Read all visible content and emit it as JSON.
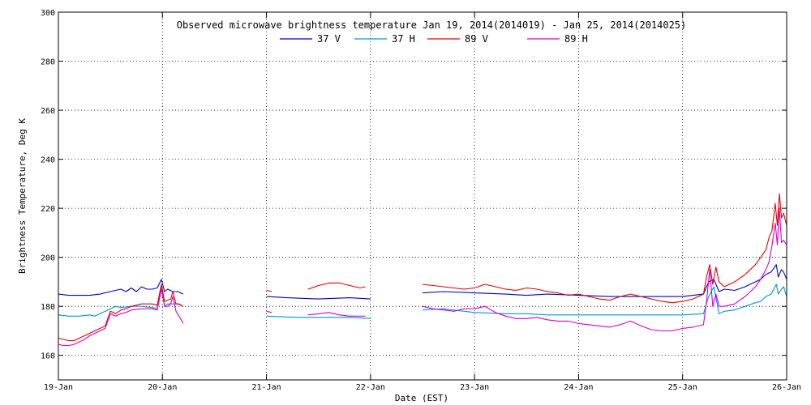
{
  "chart_data": {
    "type": "line",
    "title": "Observed microwave brightness temperature Jan 19, 2014(2014019) - Jan 25, 2014(2014025)",
    "xlabel": "Date (EST)",
    "ylabel": "Brightness Temperature, Deg K",
    "x_tick_labels": [
      "19-Jan",
      "20-Jan",
      "21-Jan",
      "22-Jan",
      "23-Jan",
      "24-Jan",
      "25-Jan",
      "26-Jan"
    ],
    "xlim": [
      0,
      7
    ],
    "ylim": [
      150,
      300
    ],
    "y_ticks": [
      160,
      180,
      200,
      220,
      240,
      260,
      280,
      300
    ],
    "grid": true,
    "legend_position": "top-center",
    "series": [
      {
        "name": "37 V",
        "color": "#0000c8",
        "segments": [
          [
            [
              0.0,
              185
            ],
            [
              0.1,
              184.5
            ],
            [
              0.2,
              184.5
            ],
            [
              0.3,
              184.5
            ],
            [
              0.4,
              185
            ],
            [
              0.5,
              186
            ],
            [
              0.6,
              187
            ],
            [
              0.65,
              186
            ],
            [
              0.7,
              187.5
            ],
            [
              0.75,
              186
            ],
            [
              0.8,
              188
            ],
            [
              0.85,
              187
            ],
            [
              0.9,
              187
            ],
            [
              0.95,
              187.5
            ],
            [
              0.99,
              191
            ],
            [
              1.02,
              186
            ],
            [
              1.05,
              187
            ],
            [
              1.1,
              186
            ],
            [
              1.15,
              186
            ],
            [
              1.2,
              185
            ]
          ],
          [
            [
              2.0,
              184
            ],
            [
              2.2,
              183.5
            ],
            [
              2.5,
              183
            ],
            [
              2.8,
              183.5
            ],
            [
              3.0,
              183
            ]
          ],
          [
            [
              3.5,
              185.5
            ],
            [
              3.7,
              186
            ],
            [
              4.0,
              185.5
            ],
            [
              4.3,
              185
            ],
            [
              4.5,
              184.5
            ],
            [
              4.7,
              185
            ],
            [
              5.0,
              184.5
            ],
            [
              5.3,
              184
            ],
            [
              5.5,
              184
            ],
            [
              5.8,
              184
            ],
            [
              6.0,
              184
            ],
            [
              6.2,
              185
            ],
            [
              6.25,
              190
            ],
            [
              6.3,
              191
            ],
            [
              6.35,
              186
            ],
            [
              6.4,
              187
            ],
            [
              6.5,
              186.5
            ],
            [
              6.6,
              188
            ],
            [
              6.7,
              190
            ],
            [
              6.75,
              191
            ],
            [
              6.8,
              193
            ],
            [
              6.85,
              194
            ],
            [
              6.9,
              197
            ],
            [
              6.92,
              192
            ],
            [
              6.95,
              195
            ],
            [
              6.97,
              194
            ],
            [
              7.0,
              191
            ]
          ]
        ]
      },
      {
        "name": "37 H",
        "color": "#0096dc",
        "segments": [
          [
            [
              0.0,
              176.5
            ],
            [
              0.1,
              176
            ],
            [
              0.2,
              176
            ],
            [
              0.3,
              176.5
            ],
            [
              0.35,
              176
            ],
            [
              0.4,
              177
            ],
            [
              0.45,
              178
            ],
            [
              0.5,
              179
            ],
            [
              0.55,
              180
            ],
            [
              0.6,
              179.5
            ],
            [
              0.7,
              180
            ],
            [
              0.8,
              180
            ],
            [
              0.9,
              179.5
            ],
            [
              0.95,
              179
            ],
            [
              0.99,
              188
            ],
            [
              1.02,
              180
            ],
            [
              1.05,
              181
            ],
            [
              1.1,
              181
            ],
            [
              1.15,
              181
            ],
            [
              1.2,
              180
            ]
          ],
          [
            [
              2.0,
              176
            ],
            [
              2.3,
              175.5
            ],
            [
              2.6,
              175.5
            ],
            [
              2.8,
              175.5
            ],
            [
              3.0,
              175
            ]
          ],
          [
            [
              3.5,
              178.5
            ],
            [
              3.7,
              179
            ],
            [
              4.0,
              177.5
            ],
            [
              4.3,
              177
            ],
            [
              4.5,
              177
            ],
            [
              4.7,
              176.5
            ],
            [
              5.0,
              176.5
            ],
            [
              5.3,
              176.5
            ],
            [
              5.5,
              176.5
            ],
            [
              5.8,
              176.5
            ],
            [
              6.0,
              176.5
            ],
            [
              6.2,
              177
            ],
            [
              6.25,
              184
            ],
            [
              6.3,
              188
            ],
            [
              6.35,
              177
            ],
            [
              6.4,
              178
            ],
            [
              6.5,
              178.5
            ],
            [
              6.6,
              180
            ],
            [
              6.7,
              181.5
            ],
            [
              6.75,
              182
            ],
            [
              6.8,
              184
            ],
            [
              6.85,
              185
            ],
            [
              6.9,
              189
            ],
            [
              6.92,
              185
            ],
            [
              6.95,
              187
            ],
            [
              6.97,
              188
            ],
            [
              7.0,
              184
            ]
          ]
        ]
      },
      {
        "name": "89 V",
        "color": "#e60000",
        "segments": [
          [
            [
              0.0,
              167
            ],
            [
              0.05,
              166.5
            ],
            [
              0.1,
              166
            ],
            [
              0.15,
              166
            ],
            [
              0.2,
              167
            ],
            [
              0.25,
              168
            ],
            [
              0.3,
              169
            ],
            [
              0.35,
              170
            ],
            [
              0.4,
              171
            ],
            [
              0.45,
              172
            ],
            [
              0.5,
              178
            ],
            [
              0.55,
              177
            ],
            [
              0.6,
              178.5
            ],
            [
              0.65,
              179
            ],
            [
              0.7,
              180
            ],
            [
              0.8,
              181
            ],
            [
              0.9,
              181
            ],
            [
              0.95,
              180.5
            ],
            [
              0.99,
              189
            ],
            [
              1.02,
              182
            ],
            [
              1.05,
              182.5
            ],
            [
              1.08,
              183
            ],
            [
              1.1,
              186
            ],
            [
              1.13,
              181
            ],
            [
              1.16,
              181
            ],
            [
              1.2,
              180
            ]
          ],
          [
            [
              2.0,
              186.5
            ],
            [
              2.05,
              186
            ]
          ],
          [
            [
              2.4,
              187
            ],
            [
              2.5,
              188.5
            ],
            [
              2.6,
              189.5
            ],
            [
              2.7,
              189.5
            ],
            [
              2.8,
              188.5
            ],
            [
              2.9,
              187.5
            ],
            [
              2.95,
              188
            ]
          ],
          [
            [
              3.5,
              189
            ],
            [
              3.6,
              188.5
            ],
            [
              3.7,
              188
            ],
            [
              3.8,
              187.5
            ],
            [
              3.9,
              187
            ],
            [
              4.0,
              187.5
            ],
            [
              4.1,
              189
            ],
            [
              4.2,
              188
            ],
            [
              4.3,
              187
            ],
            [
              4.4,
              186.5
            ],
            [
              4.5,
              187.5
            ],
            [
              4.6,
              187
            ],
            [
              4.7,
              186
            ],
            [
              4.8,
              185.5
            ],
            [
              4.9,
              184.5
            ],
            [
              5.0,
              185
            ],
            [
              5.1,
              184
            ],
            [
              5.2,
              183
            ],
            [
              5.3,
              182.5
            ],
            [
              5.4,
              184
            ],
            [
              5.5,
              185
            ],
            [
              5.6,
              184
            ],
            [
              5.7,
              183
            ],
            [
              5.8,
              182
            ],
            [
              5.9,
              181.5
            ],
            [
              6.0,
              182
            ],
            [
              6.1,
              183
            ],
            [
              6.2,
              185
            ],
            [
              6.23,
              192
            ],
            [
              6.26,
              197
            ],
            [
              6.29,
              189
            ],
            [
              6.32,
              196
            ],
            [
              6.35,
              190
            ],
            [
              6.4,
              188
            ],
            [
              6.5,
              190
            ],
            [
              6.6,
              193
            ],
            [
              6.7,
              197
            ],
            [
              6.75,
              200
            ],
            [
              6.8,
              203
            ],
            [
              6.83,
              208
            ],
            [
              6.86,
              211
            ],
            [
              6.89,
              222
            ],
            [
              6.91,
              213
            ],
            [
              6.93,
              226
            ],
            [
              6.95,
              216
            ],
            [
              6.97,
              218
            ],
            [
              7.0,
              213
            ]
          ]
        ]
      },
      {
        "name": "89 H",
        "color": "#d200d2",
        "segments": [
          [
            [
              0.0,
              164.5
            ],
            [
              0.05,
              164
            ],
            [
              0.1,
              164
            ],
            [
              0.15,
              164.5
            ],
            [
              0.2,
              165.5
            ],
            [
              0.25,
              166.5
            ],
            [
              0.3,
              168
            ],
            [
              0.35,
              169
            ],
            [
              0.4,
              170
            ],
            [
              0.45,
              171
            ],
            [
              0.5,
              177
            ],
            [
              0.55,
              176
            ],
            [
              0.6,
              177
            ],
            [
              0.65,
              177.5
            ],
            [
              0.7,
              178.5
            ],
            [
              0.8,
              179
            ],
            [
              0.9,
              179
            ],
            [
              0.95,
              178.5
            ],
            [
              0.99,
              187
            ],
            [
              1.02,
              180
            ],
            [
              1.05,
              180
            ],
            [
              1.08,
              181
            ],
            [
              1.1,
              184
            ],
            [
              1.13,
              178
            ],
            [
              1.16,
              176
            ],
            [
              1.2,
              173
            ]
          ],
          [
            [
              2.0,
              178
            ],
            [
              2.05,
              177.5
            ]
          ],
          [
            [
              2.4,
              176.5
            ],
            [
              2.5,
              177
            ],
            [
              2.6,
              177.5
            ],
            [
              2.7,
              176.5
            ],
            [
              2.8,
              176
            ],
            [
              2.9,
              176
            ],
            [
              2.95,
              176
            ]
          ],
          [
            [
              3.5,
              180
            ],
            [
              3.6,
              179
            ],
            [
              3.7,
              178.5
            ],
            [
              3.8,
              178
            ],
            [
              3.9,
              179
            ],
            [
              4.0,
              179
            ],
            [
              4.1,
              180
            ],
            [
              4.2,
              177.5
            ],
            [
              4.3,
              176
            ],
            [
              4.4,
              175
            ],
            [
              4.5,
              175
            ],
            [
              4.6,
              175.5
            ],
            [
              4.7,
              174.5
            ],
            [
              4.8,
              174
            ],
            [
              4.9,
              174
            ],
            [
              5.0,
              173
            ],
            [
              5.1,
              172.5
            ],
            [
              5.2,
              172
            ],
            [
              5.3,
              171.5
            ],
            [
              5.4,
              172.5
            ],
            [
              5.5,
              174
            ],
            [
              5.6,
              172
            ],
            [
              5.7,
              170.5
            ],
            [
              5.8,
              170
            ],
            [
              5.9,
              170
            ],
            [
              6.0,
              171
            ],
            [
              6.1,
              171.5
            ],
            [
              6.2,
              172.5
            ],
            [
              6.23,
              182
            ],
            [
              6.26,
              195
            ],
            [
              6.29,
              180
            ],
            [
              6.32,
              185
            ],
            [
              6.35,
              180
            ],
            [
              6.4,
              180
            ],
            [
              6.5,
              181
            ],
            [
              6.6,
              184
            ],
            [
              6.7,
              188
            ],
            [
              6.75,
              191
            ],
            [
              6.8,
              195
            ],
            [
              6.83,
              198
            ],
            [
              6.86,
              205
            ],
            [
              6.89,
              214
            ],
            [
              6.91,
              205
            ],
            [
              6.93,
              220
            ],
            [
              6.95,
              206
            ],
            [
              6.97,
              207
            ],
            [
              7.0,
              205
            ]
          ]
        ]
      }
    ]
  }
}
